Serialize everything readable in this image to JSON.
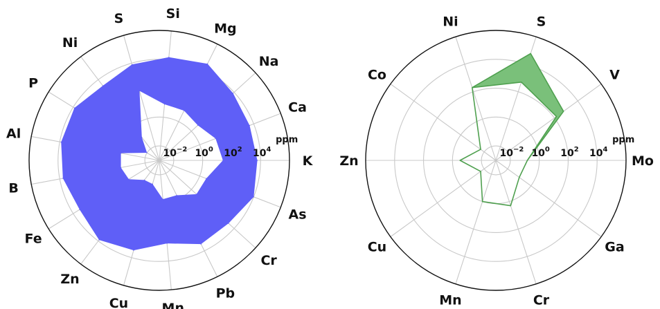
{
  "chart_data": [
    {
      "type": "radar",
      "scale": "log",
      "rlim": [
        0.001,
        1000000
      ],
      "rgrid_levels": [
        0.01,
        1,
        100,
        10000
      ],
      "radial_tick_labels": [
        {
          "base": "10",
          "exp": "−2"
        },
        {
          "base": "10",
          "exp": "0"
        },
        {
          "base": "10",
          "exp": "2"
        },
        {
          "base": "10",
          "exp": "4"
        }
      ],
      "unit_label": "ppm",
      "categories": [
        "K",
        "Ca",
        "Na",
        "Mg",
        "Si",
        "S",
        "Ni",
        "P",
        "Al",
        "B",
        "Fe",
        "Zn",
        "Cu",
        "Mn",
        "Pb",
        "Cr",
        "As"
      ],
      "series": [
        {
          "fill": "#5f5ff7",
          "upper": [
            6000,
            5000,
            8000,
            30000,
            15000,
            8000,
            3000,
            8000,
            8000,
            6000,
            3000,
            8000,
            3000,
            600,
            3000,
            3000,
            10000
          ],
          "lower": [
            25,
            15,
            4,
            7,
            8,
            100,
            0.1,
            0.01,
            0.5,
            0.5,
            0.3,
            0.05,
            0.05,
            0.5,
            0.5,
            3,
            3
          ]
        }
      ],
      "grid": true
    },
    {
      "type": "radar",
      "scale": "log",
      "rlim": [
        0.001,
        1000000
      ],
      "rgrid_levels": [
        0.01,
        1,
        100,
        10000
      ],
      "radial_tick_labels": [
        {
          "base": "10",
          "exp": "−2"
        },
        {
          "base": "10",
          "exp": "0"
        },
        {
          "base": "10",
          "exp": "2"
        },
        {
          "base": "10",
          "exp": "4"
        }
      ],
      "unit_label": "ppm",
      "categories": [
        "Mo",
        "V",
        "S",
        "Ni",
        "Co",
        "Zn",
        "Cu",
        "Mn",
        "Cr",
        "Ga"
      ],
      "series": [
        {
          "fill": "#7ac07a",
          "stroke": "#4fa04f",
          "upper": [
            0.15,
            600,
            60000,
            200,
            0.02,
            0.3,
            0.02,
            1,
            2,
            0.1
          ],
          "lower": [
            0.15,
            150,
            500,
            200,
            0.02,
            0.3,
            0.02,
            1,
            2,
            0.1
          ]
        }
      ],
      "grid": true
    }
  ]
}
